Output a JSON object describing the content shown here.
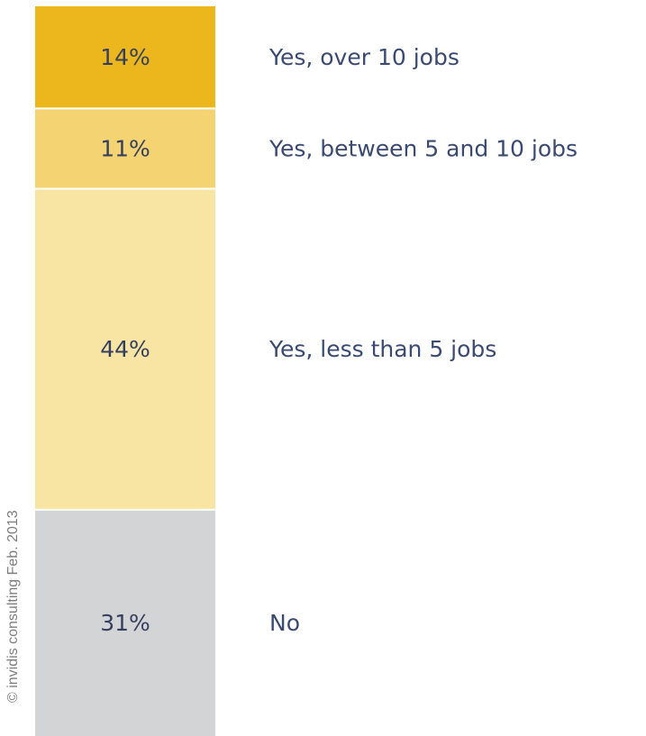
{
  "chart_data": {
    "type": "bar",
    "stacked": true,
    "orientation": "vertical",
    "title": "",
    "xlabel": "",
    "ylabel": "",
    "ylim": [
      0,
      100
    ],
    "grid": false,
    "legend": "none",
    "series": [
      {
        "name": "Yes, over 10 jobs",
        "value": 14,
        "label": "14%",
        "color": "#ecb71d"
      },
      {
        "name": "Yes, between 5 and 10 jobs",
        "value": 11,
        "label": "11%",
        "color": "#f4d472"
      },
      {
        "name": "Yes, less than 5 jobs",
        "value": 44,
        "label": "44%",
        "color": "#f8e5a4"
      },
      {
        "name": "No",
        "value": 31,
        "label": "31%",
        "color": "#d3d4d6"
      }
    ]
  },
  "credit": "© invidis consulting Feb. 2013"
}
